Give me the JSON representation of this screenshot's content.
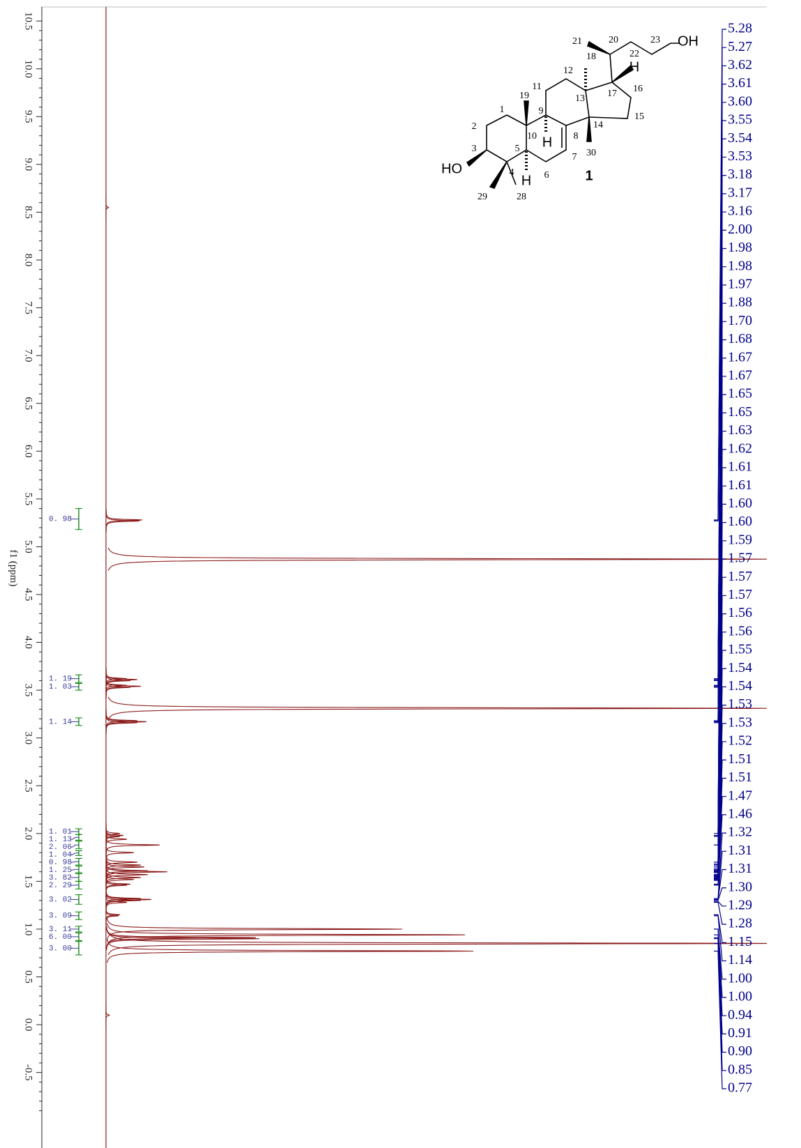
{
  "chart_data": {
    "type": "nmr",
    "xlabel": "f1 (ppm)",
    "xlim": [
      10.72,
      -1.29
    ],
    "xticks": [
      10.5,
      {
        "value": 10,
        "label": "10.0"
      },
      9.5,
      {
        "value": 9,
        "label": "9.0"
      },
      8.5,
      {
        "value": 8,
        "label": "8.0"
      },
      7.5,
      {
        "value": 7,
        "label": "7.0"
      },
      6.5,
      {
        "value": 6,
        "label": "6.0"
      },
      5.5,
      {
        "value": 5,
        "label": "5.0"
      },
      4.5,
      {
        "value": 4,
        "label": "4.0"
      },
      3.5,
      {
        "value": 3,
        "label": "3.0"
      },
      2.5,
      {
        "value": 2,
        "label": "2.0"
      },
      1.5,
      {
        "value": 1,
        "label": "1.0"
      },
      0.5,
      {
        "value": 0,
        "label": "0.0"
      },
      -0.5
    ],
    "color": "#8b1a1a",
    "x": [
      8.55,
      5.28,
      5.27,
      4.87,
      3.62,
      3.61,
      3.6,
      3.55,
      3.54,
      3.53,
      3.31,
      3.18,
      3.17,
      3.16,
      2.0,
      1.98,
      1.97,
      1.94,
      1.88,
      1.8,
      1.7,
      1.67,
      1.65,
      1.61,
      1.6,
      1.57,
      1.54,
      1.52,
      1.47,
      1.46,
      1.32,
      1.31,
      1.3,
      1.28,
      1.15,
      1.14,
      1.0,
      0.94,
      0.91,
      0.9,
      0.85,
      0.77,
      0.1
    ],
    "values": [
      4,
      52,
      48,
      960,
      30,
      45,
      35,
      30,
      50,
      35,
      960,
      45,
      58,
      45,
      20,
      25,
      20,
      30,
      77,
      40,
      45,
      50,
      55,
      60,
      88,
      60,
      50,
      40,
      35,
      30,
      50,
      65,
      50,
      30,
      20,
      18,
      425,
      515,
      215,
      220,
      960,
      527,
      5
    ],
    "peak_labels": [
      "5.28",
      "5.27",
      "3.62",
      "3.61",
      "3.60",
      "3.55",
      "3.54",
      "3.53",
      "3.18",
      "3.17",
      "3.16",
      "2.00",
      "1.98",
      "1.98",
      "1.97",
      "1.88",
      "1.70",
      "1.68",
      "1.67",
      "1.67",
      "1.65",
      "1.65",
      "1.63",
      "1.62",
      "1.61",
      "1.61",
      "1.60",
      "1.60",
      "1.59",
      "1.57",
      "1.57",
      "1.57",
      "1.56",
      "1.56",
      "1.55",
      "1.54",
      "1.54",
      "1.53",
      "1.53",
      "1.52",
      "1.51",
      "1.51",
      "1.47",
      "1.46",
      "1.32",
      "1.31",
      "1.31",
      "1.30",
      "1.29",
      "1.28",
      "1.15",
      "1.14",
      "1.00",
      "1.00",
      "0.94",
      "0.91",
      "0.90",
      "0.85",
      "0.77"
    ],
    "peak_label_color": "#00008b",
    "integral_color": "#008000",
    "integrals": [
      {
        "value": 0.98,
        "label": "0. 98",
        "range": [
          5.4,
          5.18
        ]
      },
      {
        "value": 1.19,
        "label": "1. 19",
        "range": [
          3.66,
          3.58
        ]
      },
      {
        "value": 1.03,
        "label": "1. 03",
        "range": [
          3.57,
          3.5
        ]
      },
      {
        "value": 1.14,
        "label": "1. 14",
        "range": [
          3.21,
          3.13
        ]
      },
      {
        "value": 1.01,
        "label": "1. 01",
        "range": [
          2.05,
          1.99
        ]
      },
      {
        "value": 1.13,
        "label": "1. 13",
        "range": [
          1.99,
          1.93
        ]
      },
      {
        "value": 2.06,
        "label": "2. 06",
        "range": [
          1.92,
          1.84
        ]
      },
      {
        "value": 1.04,
        "label": "1. 04",
        "range": [
          1.82,
          1.77
        ]
      },
      {
        "value": 0.98,
        "label": "0. 98",
        "range": [
          1.74,
          1.67
        ]
      },
      {
        "value": 1.25,
        "label": "1. 25",
        "range": [
          1.66,
          1.59
        ]
      },
      {
        "value": 3.82,
        "label": "3. 82",
        "range": [
          1.58,
          1.5
        ]
      },
      {
        "value": 2.29,
        "label": "2. 29",
        "range": [
          1.5,
          1.42
        ]
      },
      {
        "value": 3.02,
        "label": "3. 02",
        "range": [
          1.36,
          1.26
        ]
      },
      {
        "value": 3.09,
        "label": "3. 09",
        "range": [
          1.18,
          1.1
        ]
      },
      {
        "value": 3.11,
        "label": "3. 11",
        "range": [
          1.03,
          0.97
        ]
      },
      {
        "value": 6.0,
        "label": "6. 00",
        "range": [
          0.96,
          0.88
        ]
      },
      {
        "value": 3.0,
        "label": "3. 00",
        "range": [
          0.87,
          0.73
        ]
      }
    ]
  },
  "structure": {
    "compound": "1",
    "atoms": [
      "1",
      "2",
      "3",
      "4",
      "5",
      "6",
      "7",
      "8",
      "9",
      "10",
      "11",
      "12",
      "13",
      "14",
      "15",
      "16",
      "17",
      "18",
      "19",
      "20",
      "21",
      "22",
      "23",
      "28",
      "29",
      "30"
    ],
    "groups": [
      "HO",
      "OH",
      "H",
      "H",
      "H"
    ]
  }
}
